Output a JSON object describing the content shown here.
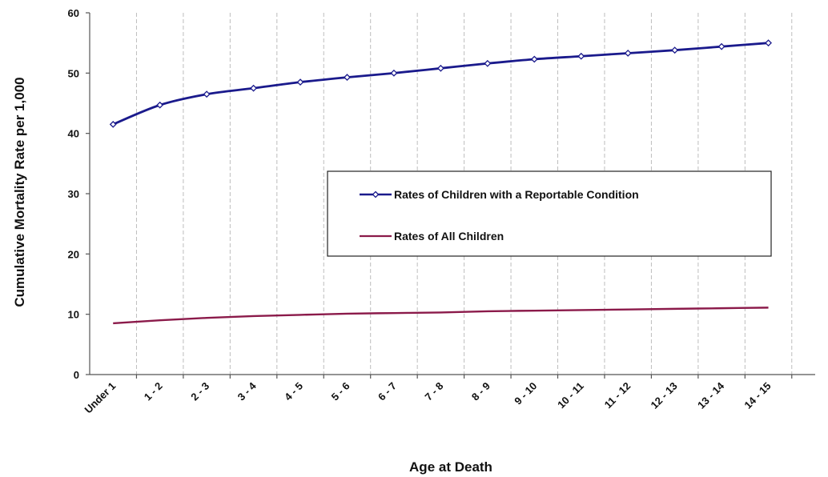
{
  "chart_data": {
    "type": "line",
    "title": "",
    "xlabel": "Age at Death",
    "ylabel": "Cumulative Mortality Rate per 1,000",
    "ylim": [
      0,
      60
    ],
    "yticks": [
      "0",
      "10",
      "20",
      "30",
      "40",
      "50",
      "60"
    ],
    "categories": [
      "Under 1",
      "1 - 2",
      "2 - 3",
      "3 - 4",
      "4 - 5",
      "5 - 6",
      "6 - 7",
      "7 - 8",
      "8 - 9",
      "9 - 10",
      "10 - 11",
      "11 - 12",
      "12 - 13",
      "13 - 14",
      "14 - 15"
    ],
    "grid": "vertical dashed",
    "legend_position": "center-right",
    "series": [
      {
        "name": "Rates of Children with a Reportable Condition",
        "color": "#1a1a8c",
        "markers": true,
        "values": [
          41.5,
          44.7,
          46.5,
          47.5,
          48.5,
          49.3,
          50.0,
          50.8,
          51.6,
          52.3,
          52.8,
          53.3,
          53.8,
          54.4,
          55.0
        ]
      },
      {
        "name": "Rates of All Children",
        "color": "#8b1a4a",
        "markers": false,
        "values": [
          8.5,
          9.0,
          9.4,
          9.7,
          9.9,
          10.1,
          10.2,
          10.3,
          10.5,
          10.6,
          10.7,
          10.8,
          10.9,
          11.0,
          11.1
        ]
      }
    ]
  }
}
